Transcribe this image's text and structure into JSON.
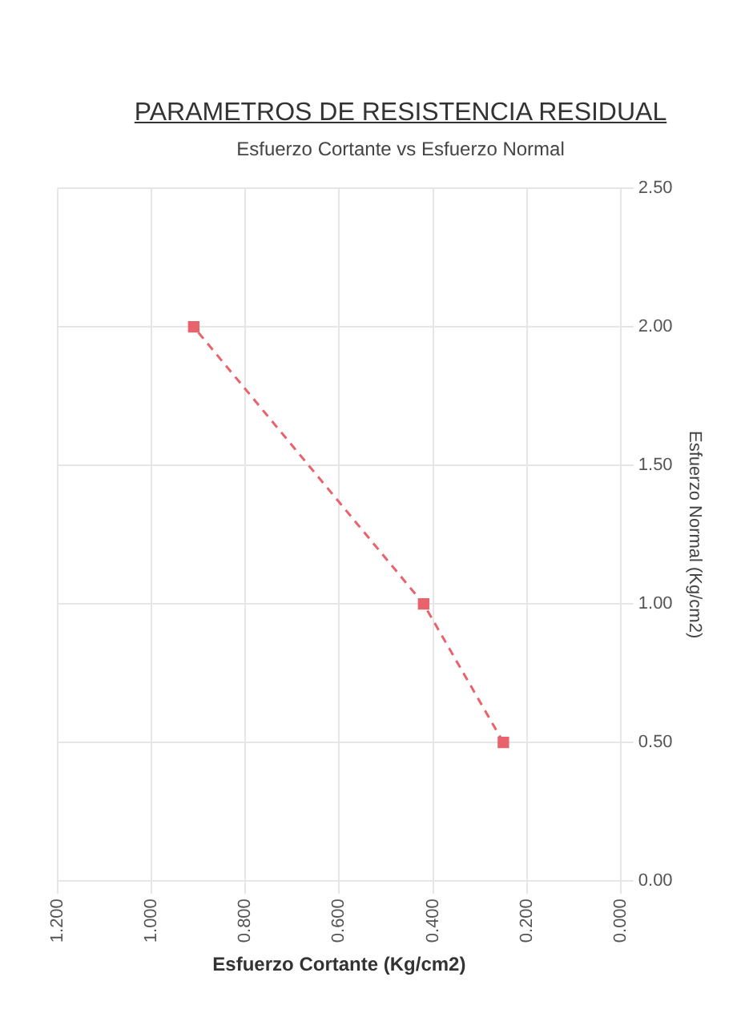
{
  "chart_data": {
    "type": "line",
    "title": "PARAMETROS DE RESISTENCIA RESIDUAL",
    "subtitle": "Esfuerzo Cortante vs Esfuerzo Normal",
    "xlabel": "Esfuerzo Cortante (Kg/cm2)",
    "ylabel": "Esfuerzo Normal (Kg/cm2)",
    "x": [
      0.25,
      0.42,
      0.91
    ],
    "series": [
      {
        "color": "#e8636b",
        "values": [
          0.5,
          1.0,
          2.0
        ]
      }
    ],
    "xlim": [
      1.2,
      0
    ],
    "xticks": [
      {
        "value": 1.2,
        "label": "1.200"
      },
      {
        "value": 1,
        "label": "1.000"
      },
      {
        "value": 0.8,
        "label": "0.800"
      },
      {
        "value": 0.6,
        "label": "0.600"
      },
      {
        "value": 0.4,
        "label": "0.400"
      },
      {
        "value": 0.2,
        "label": "0.200"
      },
      {
        "value": 0,
        "label": "0.000"
      }
    ],
    "ylim": [
      0,
      2.5
    ],
    "yticks": [
      {
        "value": 0,
        "label": "0.00"
      },
      {
        "value": 0.5,
        "label": "0.50"
      },
      {
        "value": 1,
        "label": "1.00"
      },
      {
        "value": 1.5,
        "label": "1.50"
      },
      {
        "value": 2,
        "label": "2.00"
      },
      {
        "value": 2.5,
        "label": "2.50"
      }
    ],
    "grid": true,
    "legend": false,
    "marker": "square",
    "line_style": "dashed"
  }
}
